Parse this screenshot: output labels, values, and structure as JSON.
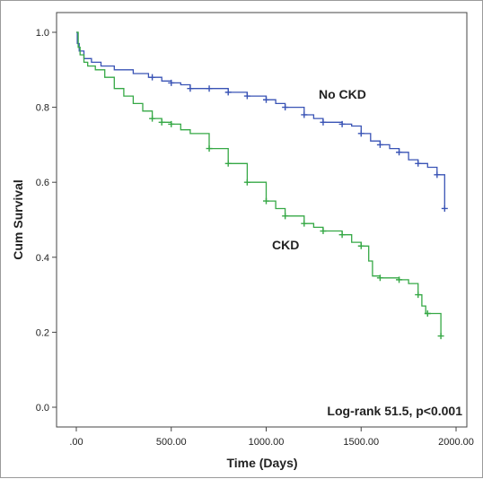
{
  "chart_data": {
    "type": "line",
    "step": true,
    "xlabel": "Time (Days)",
    "ylabel": "Cum Survival",
    "xlim": [
      0,
      2000
    ],
    "ylim": [
      0.0,
      1.0
    ],
    "xticks": [
      0,
      500,
      1000,
      1500,
      2000
    ],
    "xtick_labels": [
      ".00",
      "500.00",
      "1000.00",
      "1500.00",
      "2000.00"
    ],
    "yticks": [
      0.0,
      0.2,
      0.4,
      0.6,
      0.8,
      1.0
    ],
    "ytick_labels": [
      "0.0",
      "0.2",
      "0.4",
      "0.6",
      "0.8",
      "1.0"
    ],
    "grid": false,
    "series": [
      {
        "name": "No CKD",
        "color": "#3953b5",
        "x": [
          0,
          5,
          15,
          40,
          80,
          130,
          200,
          300,
          380,
          450,
          500,
          550,
          600,
          700,
          800,
          900,
          1000,
          1050,
          1100,
          1200,
          1250,
          1300,
          1400,
          1450,
          1500,
          1550,
          1600,
          1650,
          1700,
          1750,
          1800,
          1850,
          1900,
          1920,
          1940
        ],
        "y": [
          1.0,
          0.97,
          0.95,
          0.93,
          0.92,
          0.91,
          0.9,
          0.89,
          0.88,
          0.87,
          0.865,
          0.86,
          0.85,
          0.85,
          0.84,
          0.83,
          0.82,
          0.81,
          0.8,
          0.78,
          0.77,
          0.76,
          0.755,
          0.75,
          0.73,
          0.71,
          0.7,
          0.69,
          0.68,
          0.66,
          0.65,
          0.64,
          0.62,
          0.62,
          0.53
        ],
        "censor_x": [
          400,
          500,
          600,
          700,
          800,
          900,
          1000,
          1100,
          1200,
          1300,
          1400,
          1500,
          1600,
          1700,
          1800,
          1900,
          1940
        ]
      },
      {
        "name": "CKD",
        "color": "#35a845",
        "x": [
          0,
          10,
          20,
          40,
          60,
          100,
          150,
          200,
          250,
          300,
          350,
          400,
          450,
          500,
          550,
          600,
          700,
          800,
          900,
          1000,
          1050,
          1100,
          1200,
          1250,
          1300,
          1400,
          1450,
          1500,
          1540,
          1560,
          1600,
          1700,
          1750,
          1800,
          1820,
          1840,
          1860,
          1900,
          1920
        ],
        "y": [
          1.0,
          0.96,
          0.94,
          0.92,
          0.91,
          0.9,
          0.88,
          0.85,
          0.83,
          0.81,
          0.79,
          0.77,
          0.76,
          0.755,
          0.74,
          0.73,
          0.69,
          0.65,
          0.6,
          0.55,
          0.53,
          0.51,
          0.49,
          0.48,
          0.47,
          0.46,
          0.44,
          0.43,
          0.39,
          0.35,
          0.345,
          0.34,
          0.33,
          0.3,
          0.27,
          0.25,
          0.25,
          0.25,
          0.19
        ],
        "censor_x": [
          400,
          450,
          500,
          700,
          800,
          900,
          1000,
          1100,
          1200,
          1300,
          1400,
          1500,
          1600,
          1700,
          1800,
          1850,
          1920
        ]
      }
    ],
    "annotations": {
      "no_ckd_label": "No CKD",
      "ckd_label": "CKD",
      "logrank": "Log-rank 51.5, p<0.001"
    }
  }
}
